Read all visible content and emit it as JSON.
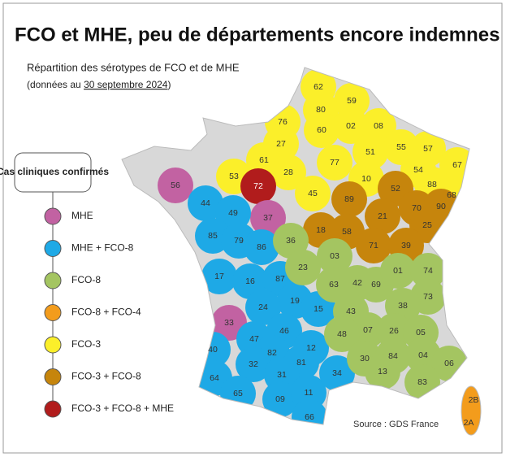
{
  "header": {
    "title": "FCO et MHE, peu de départements encore indemnes",
    "subtitle": "Répartition des sérotypes de FCO et de MHE",
    "date_prefix": "(données au",
    "date": "30 septembre 2024",
    "date_suffix": ")"
  },
  "legend": {
    "title": "Cas cliniques confirmés",
    "items": [
      {
        "label": "MHE",
        "color": "#c262a2"
      },
      {
        "label": "MHE + FCO-8",
        "color": "#1ea9e6"
      },
      {
        "label": "FCO-8",
        "color": "#a4c561"
      },
      {
        "label": "FCO-8 + FCO-4",
        "color": "#f39c1c"
      },
      {
        "label": "FCO-3",
        "color": "#fbef2a"
      },
      {
        "label": "FCO-3 + FCO-8",
        "color": "#c6850c"
      },
      {
        "label": "FCO-3 + FCO-8 + MHE",
        "color": "#b11c1c"
      }
    ]
  },
  "departments": [
    {
      "code": "62",
      "status": 4
    },
    {
      "code": "59",
      "status": 4
    },
    {
      "code": "80",
      "status": 4
    },
    {
      "code": "02",
      "status": 4
    },
    {
      "code": "08",
      "status": 4
    },
    {
      "code": "76",
      "status": 4
    },
    {
      "code": "60",
      "status": 4
    },
    {
      "code": "27",
      "status": 4
    },
    {
      "code": "51",
      "status": 4
    },
    {
      "code": "55",
      "status": 4
    },
    {
      "code": "57",
      "status": 4
    },
    {
      "code": "67",
      "status": 4
    },
    {
      "code": "61",
      "status": 4
    },
    {
      "code": "28",
      "status": 4
    },
    {
      "code": "77",
      "status": 4
    },
    {
      "code": "10",
      "status": 4
    },
    {
      "code": "54",
      "status": 4
    },
    {
      "code": "88",
      "status": 4
    },
    {
      "code": "68",
      "status": 4
    },
    {
      "code": "53",
      "status": 4
    },
    {
      "code": "45",
      "status": 4
    },
    {
      "code": "72",
      "status": 6
    },
    {
      "code": "89",
      "status": 5
    },
    {
      "code": "52",
      "status": 5
    },
    {
      "code": "70",
      "status": 5
    },
    {
      "code": "90",
      "status": 5
    },
    {
      "code": "21",
      "status": 5
    },
    {
      "code": "25",
      "status": 5
    },
    {
      "code": "18",
      "status": 5
    },
    {
      "code": "58",
      "status": 5
    },
    {
      "code": "71",
      "status": 5
    },
    {
      "code": "39",
      "status": 5
    },
    {
      "code": "56",
      "status": 0
    },
    {
      "code": "37",
      "status": 0
    },
    {
      "code": "33",
      "status": 0
    },
    {
      "code": "44",
      "status": 1
    },
    {
      "code": "49",
      "status": 1
    },
    {
      "code": "85",
      "status": 1
    },
    {
      "code": "79",
      "status": 1
    },
    {
      "code": "86",
      "status": 1
    },
    {
      "code": "17",
      "status": 1
    },
    {
      "code": "16",
      "status": 1
    },
    {
      "code": "87",
      "status": 1
    },
    {
      "code": "19",
      "status": 1
    },
    {
      "code": "24",
      "status": 1
    },
    {
      "code": "46",
      "status": 1
    },
    {
      "code": "15",
      "status": 1
    },
    {
      "code": "40",
      "status": 1
    },
    {
      "code": "47",
      "status": 1
    },
    {
      "code": "82",
      "status": 1
    },
    {
      "code": "12",
      "status": 1
    },
    {
      "code": "81",
      "status": 1
    },
    {
      "code": "32",
      "status": 1
    },
    {
      "code": "64",
      "status": 1
    },
    {
      "code": "65",
      "status": 1
    },
    {
      "code": "31",
      "status": 1
    },
    {
      "code": "09",
      "status": 1
    },
    {
      "code": "11",
      "status": 1
    },
    {
      "code": "66",
      "status": 1
    },
    {
      "code": "34",
      "status": 1
    },
    {
      "code": "36",
      "status": 2
    },
    {
      "code": "23",
      "status": 2
    },
    {
      "code": "03",
      "status": 2
    },
    {
      "code": "63",
      "status": 2
    },
    {
      "code": "42",
      "status": 2
    },
    {
      "code": "69",
      "status": 2
    },
    {
      "code": "01",
      "status": 2
    },
    {
      "code": "74",
      "status": 2
    },
    {
      "code": "73",
      "status": 2
    },
    {
      "code": "38",
      "status": 2
    },
    {
      "code": "43",
      "status": 2
    },
    {
      "code": "07",
      "status": 2
    },
    {
      "code": "26",
      "status": 2
    },
    {
      "code": "05",
      "status": 2
    },
    {
      "code": "48",
      "status": 2
    },
    {
      "code": "04",
      "status": 2
    },
    {
      "code": "06",
      "status": 2
    },
    {
      "code": "30",
      "status": 2
    },
    {
      "code": "84",
      "status": 2
    },
    {
      "code": "13",
      "status": 2
    },
    {
      "code": "83",
      "status": 2
    },
    {
      "code": "2B",
      "status": 3
    },
    {
      "code": "2A",
      "status": 3
    }
  ],
  "source": "Source : GDS France"
}
